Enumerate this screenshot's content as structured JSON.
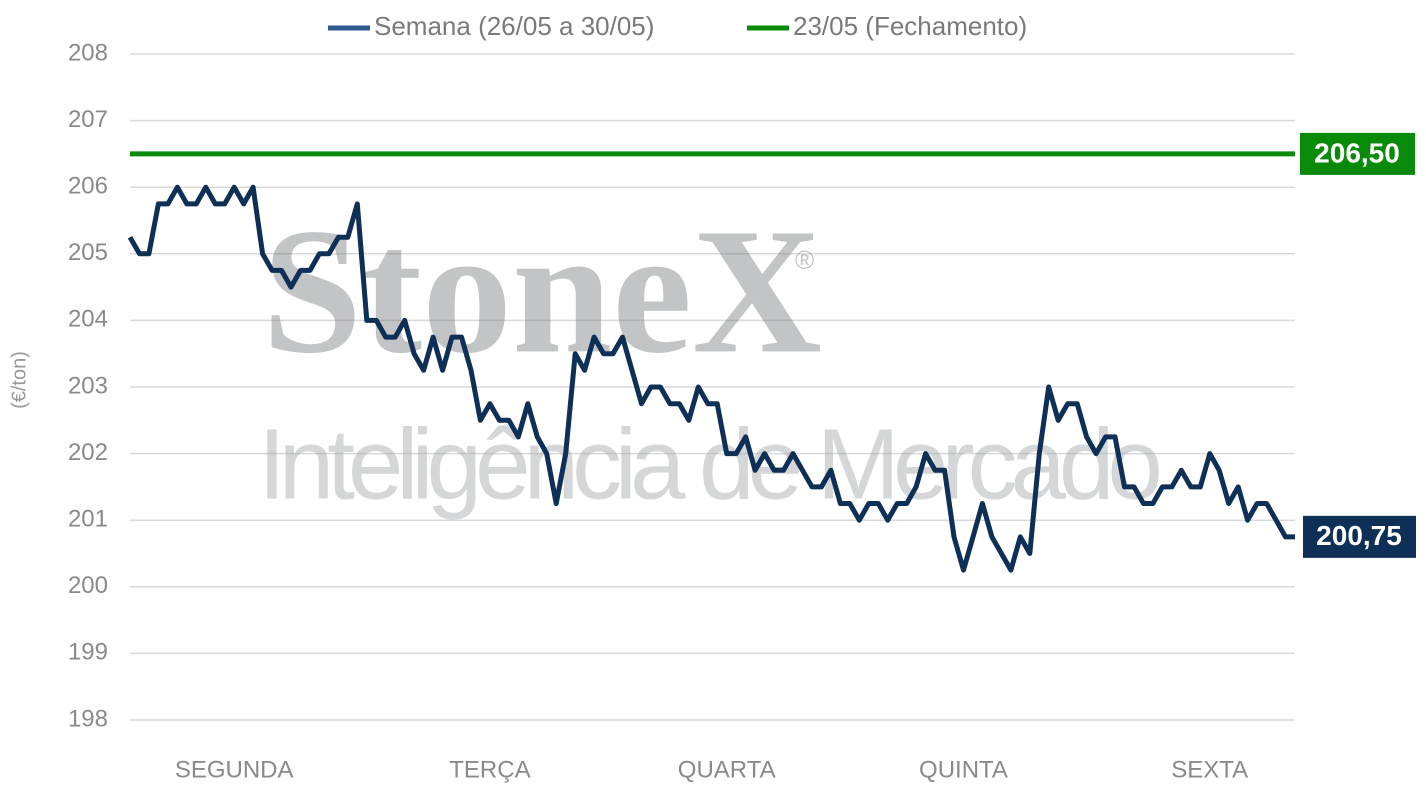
{
  "chart_data": {
    "type": "line",
    "y_label": "(€/ton)",
    "watermark": {
      "brand": "StoneX",
      "mark": "®",
      "tagline": "Inteligência de Mercado"
    },
    "categories": [
      null,
      null,
      null,
      null,
      null,
      null,
      null,
      null,
      null,
      null,
      null,
      "SEGUNDA",
      null,
      null,
      null,
      null,
      null,
      null,
      null,
      null,
      null,
      null,
      null,
      null,
      null,
      null,
      null,
      null,
      null,
      null,
      null,
      null,
      null,
      null,
      null,
      null,
      null,
      null,
      "TERÇA",
      null,
      null,
      null,
      null,
      null,
      null,
      null,
      null,
      null,
      null,
      null,
      null,
      null,
      null,
      null,
      null,
      null,
      null,
      null,
      null,
      null,
      null,
      null,
      null,
      "QUARTA",
      null,
      null,
      null,
      null,
      null,
      null,
      null,
      null,
      null,
      null,
      null,
      null,
      null,
      null,
      null,
      null,
      null,
      null,
      null,
      null,
      null,
      null,
      null,
      null,
      "QUINTA",
      null,
      null,
      null,
      null,
      null,
      null,
      null,
      null,
      null,
      null,
      null,
      null,
      null,
      null,
      null,
      null,
      null,
      null,
      null,
      null,
      null,
      null,
      null,
      null,
      null,
      "SEXTA",
      null,
      null,
      null,
      null,
      null,
      null,
      null,
      null,
      null
    ],
    "series": [
      {
        "name": "Semana (26/05 a 30/05)",
        "color": "#0e2f56",
        "end_label": "200,75",
        "values": [
          205.25,
          205,
          205,
          205.75,
          205.75,
          206,
          205.75,
          205.75,
          206,
          205.75,
          205.75,
          206,
          205.75,
          206,
          205,
          204.75,
          204.75,
          204.5,
          204.75,
          204.75,
          205,
          205,
          205.25,
          205.25,
          205.75,
          204,
          204,
          203.75,
          203.75,
          204,
          203.5,
          203.25,
          203.75,
          203.25,
          203.75,
          203.75,
          203.25,
          202.5,
          202.75,
          202.5,
          202.5,
          202.25,
          202.75,
          202.25,
          202,
          201.25,
          202,
          203.5,
          203.25,
          203.75,
          203.5,
          203.5,
          203.75,
          203.25,
          202.75,
          203,
          203,
          202.75,
          202.75,
          202.5,
          203,
          202.75,
          202.75,
          202,
          202,
          202.25,
          201.75,
          202,
          201.75,
          201.75,
          202,
          201.75,
          201.5,
          201.5,
          201.75,
          201.25,
          201.25,
          201,
          201.25,
          201.25,
          201,
          201.25,
          201.25,
          201.5,
          202,
          201.75,
          201.75,
          200.75,
          200.25,
          200.75,
          201.25,
          200.75,
          200.5,
          200.25,
          200.75,
          200.5,
          202,
          203,
          202.5,
          202.75,
          202.75,
          202.25,
          202,
          202.25,
          202.25,
          201.5,
          201.5,
          201.25,
          201.25,
          201.5,
          201.5,
          201.75,
          201.5,
          201.5,
          202,
          201.75,
          201.25,
          201.5,
          201,
          201.25,
          201.25,
          201,
          200.75,
          200.75
        ]
      }
    ],
    "reference_lines": [
      {
        "name": "23/05 (Fechamento)",
        "color": "#0a8a0a",
        "value": 206.5,
        "value_label": "206,50"
      }
    ],
    "ylim": [
      198,
      208
    ],
    "yticks": [
      198,
      199,
      200,
      201,
      202,
      203,
      204,
      205,
      206,
      207,
      208
    ],
    "grid": true
  }
}
